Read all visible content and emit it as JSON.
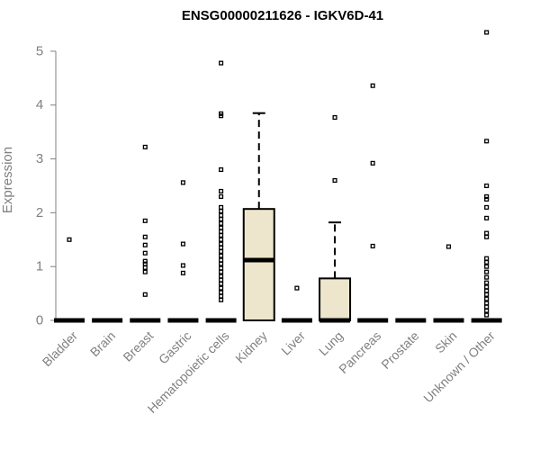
{
  "chart_data": {
    "type": "box",
    "title": "ENSG00000211626 - IGKV6D-41",
    "xlabel": "",
    "ylabel": "Expression",
    "ylim": [
      0,
      5.4
    ],
    "yticks": [
      0,
      1,
      2,
      3,
      4,
      5
    ],
    "grid": false,
    "legend": "none",
    "colors": {
      "box_fill": "#ede6cc",
      "box_stroke": "#000000",
      "axis": "#808080",
      "outlier": "#000000"
    },
    "categories": [
      "Bladder",
      "Brain",
      "Breast",
      "Gastric",
      "Hematopoietic cells",
      "Kidney",
      "Liver",
      "Lung",
      "Pancreas",
      "Prostate",
      "Skin",
      "Unknown / Other"
    ],
    "boxes": [
      {
        "category": "Bladder",
        "q1": 0,
        "median": 0,
        "q3": 0,
        "whisker_low": 0,
        "whisker_high": 0,
        "outliers": [
          1.5
        ]
      },
      {
        "category": "Brain",
        "q1": 0,
        "median": 0,
        "q3": 0,
        "whisker_low": 0,
        "whisker_high": 0,
        "outliers": []
      },
      {
        "category": "Breast",
        "q1": 0,
        "median": 0,
        "q3": 0,
        "whisker_low": 0,
        "whisker_high": 0,
        "outliers": [
          0.48,
          0.9,
          0.98,
          1.05,
          1.1,
          1.25,
          1.4,
          1.55,
          1.85,
          3.22
        ]
      },
      {
        "category": "Gastric",
        "q1": 0,
        "median": 0,
        "q3": 0,
        "whisker_low": 0,
        "whisker_high": 0,
        "outliers": [
          0.88,
          1.02,
          1.42,
          2.56
        ]
      },
      {
        "category": "Hematopoietic cells",
        "q1": 0,
        "median": 0,
        "q3": 0,
        "whisker_low": 0,
        "whisker_high": 0,
        "outliers": [
          0.38,
          0.45,
          0.52,
          0.6,
          0.68,
          0.75,
          0.82,
          0.9,
          0.97,
          1.05,
          1.12,
          1.2,
          1.28,
          1.35,
          1.42,
          1.5,
          1.58,
          1.65,
          1.72,
          1.8,
          1.88,
          1.95,
          2.03,
          2.1,
          2.3,
          2.4,
          2.8,
          3.8,
          3.84,
          4.78
        ]
      },
      {
        "category": "Kidney",
        "q1": 0,
        "median": 1.12,
        "q3": 2.07,
        "whisker_low": 0,
        "whisker_high": 3.85,
        "outliers": []
      },
      {
        "category": "Liver",
        "q1": 0,
        "median": 0,
        "q3": 0,
        "whisker_low": 0,
        "whisker_high": 0,
        "outliers": [
          0.6
        ]
      },
      {
        "category": "Lung",
        "q1": 0,
        "median": 0,
        "q3": 0.78,
        "whisker_low": 0,
        "whisker_high": 1.82,
        "outliers": [
          2.6,
          3.77
        ]
      },
      {
        "category": "Pancreas",
        "q1": 0,
        "median": 0,
        "q3": 0,
        "whisker_low": 0,
        "whisker_high": 0,
        "outliers": [
          1.38,
          2.92,
          4.36
        ]
      },
      {
        "category": "Prostate",
        "q1": 0,
        "median": 0,
        "q3": 0,
        "whisker_low": 0,
        "whisker_high": 0,
        "outliers": []
      },
      {
        "category": "Skin",
        "q1": 0,
        "median": 0,
        "q3": 0,
        "whisker_low": 0,
        "whisker_high": 0,
        "outliers": [
          1.37
        ]
      },
      {
        "category": "Unknown / Other",
        "q1": 0,
        "median": 0,
        "q3": 0,
        "whisker_low": 0,
        "whisker_high": 0,
        "outliers": [
          0.1,
          0.18,
          0.25,
          0.32,
          0.4,
          0.48,
          0.55,
          0.62,
          0.7,
          0.8,
          0.9,
          1.0,
          1.08,
          1.15,
          1.55,
          1.62,
          1.9,
          2.1,
          2.25,
          2.3,
          2.5,
          3.33,
          5.35
        ]
      }
    ]
  }
}
